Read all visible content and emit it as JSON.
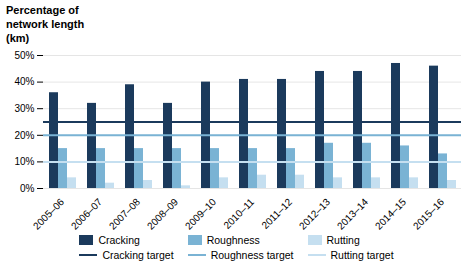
{
  "chart_data": {
    "type": "bar",
    "title": "Percentage of\nnetwork length\n(km)",
    "categories": [
      "2005–06",
      "2006–07",
      "2007–08",
      "2008–09",
      "2009–10",
      "2010–11",
      "2011–12",
      "2012–13",
      "2013–14",
      "2014–15",
      "2015–16"
    ],
    "series": [
      {
        "name": "Cracking",
        "color": "#1b3a5c",
        "values": [
          36,
          32,
          39,
          32,
          40,
          41,
          41,
          44,
          44,
          47,
          46
        ]
      },
      {
        "name": "Roughness",
        "color": "#7ab3d4",
        "values": [
          15,
          15,
          15,
          15,
          15,
          15,
          15,
          17,
          17,
          16,
          13
        ]
      },
      {
        "name": "Rutting",
        "color": "#c5dff0",
        "values": [
          4,
          2,
          3,
          1,
          4,
          5,
          5,
          4,
          4,
          4,
          3
        ]
      },
      {
        "name": "Cracking target",
        "type": "hline",
        "color": "#1b3a5c",
        "value": 25
      },
      {
        "name": "Roughness target",
        "type": "hline",
        "color": "#7ab3d4",
        "value": 20
      },
      {
        "name": "Rutting target",
        "type": "hline",
        "color": "#c5dff0",
        "value": 10
      }
    ],
    "ylim": [
      0,
      50
    ],
    "yticks": [
      {
        "value": 0,
        "label": "0%"
      },
      {
        "value": 10,
        "label": "10%"
      },
      {
        "value": 20,
        "label": "20%"
      },
      {
        "value": 30,
        "label": "30%"
      },
      {
        "value": 40,
        "label": "40%"
      },
      {
        "value": 50,
        "label": "50%"
      }
    ],
    "grid": true,
    "legend": "bottom"
  }
}
